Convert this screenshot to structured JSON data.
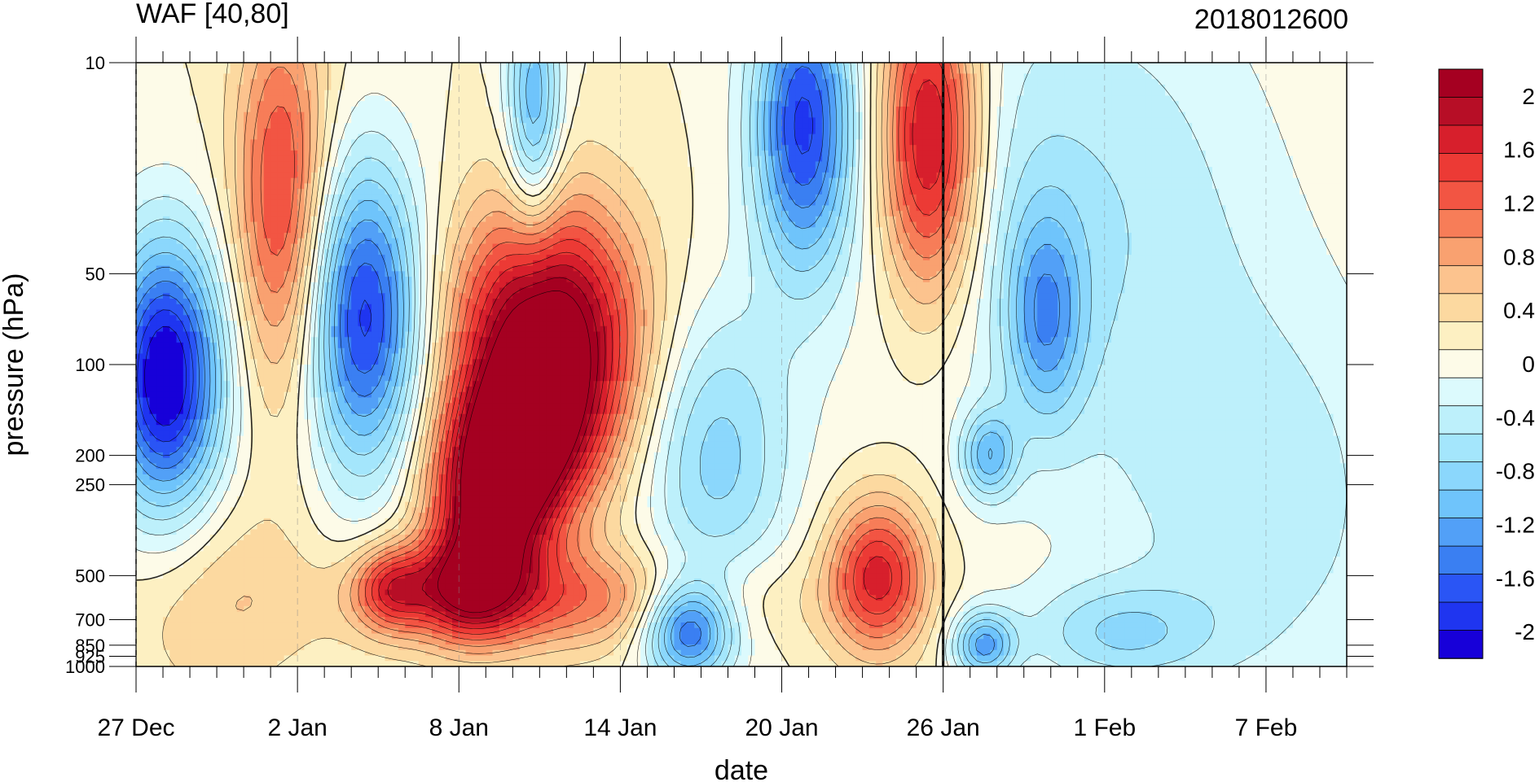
{
  "chart_data": {
    "type": "heatmap",
    "title": "WAF [40,80]",
    "date_label": "2018012600",
    "xlabel": "date",
    "ylabel": "pressure (hPa)",
    "x_ticks": [
      "27 Dec",
      "2 Jan",
      "8 Jan",
      "14 Jan",
      "20 Jan",
      "26 Jan",
      "1 Feb",
      "7 Feb"
    ],
    "x_range_days": [
      0,
      45
    ],
    "y_ticks": [
      10,
      50,
      100,
      200,
      250,
      500,
      700,
      850,
      925,
      1000
    ],
    "ylim": [
      1000,
      10
    ],
    "y_scale": "log",
    "marker_line": "26 Jan",
    "colorbar": {
      "levels": [
        -2.2,
        -2.0,
        -1.8,
        -1.6,
        -1.4,
        -1.2,
        -1.0,
        -0.8,
        -0.6,
        -0.4,
        -0.2,
        0,
        0.2,
        0.4,
        0.6,
        0.8,
        1.0,
        1.2,
        1.4,
        1.6,
        1.8,
        2.0,
        2.2
      ],
      "labels": [
        "-2",
        "-1.6",
        "-1.2",
        "-0.8",
        "-0.4",
        "0",
        "0.4",
        "0.8",
        "1.2",
        "1.6",
        "2"
      ],
      "colors": [
        "#1700d9",
        "#1f35f0",
        "#2a55f5",
        "#3a7ff2",
        "#52a0f7",
        "#6fc4fb",
        "#8bd7fc",
        "#a4e6fc",
        "#bdf0fb",
        "#dcfafd",
        "#fdfbe8",
        "#fdf0c2",
        "#fcd9a0",
        "#fcc38e",
        "#f9a170",
        "#f77d58",
        "#f25543",
        "#ec3a35",
        "#d71f2c",
        "#b70e26",
        "#a50021"
      ],
      "range": [
        -2.2,
        2.2
      ]
    },
    "blobs": [
      {
        "x": 1.1,
        "p": 110,
        "amp": -2.3,
        "w": 1.5,
        "h": 0.32
      },
      {
        "x": 8.5,
        "p": 70,
        "amp": -1.9,
        "w": 1.5,
        "h": 0.36
      },
      {
        "x": 15.3,
        "p": 85,
        "amp": 2.4,
        "w": 2.4,
        "h": 0.32
      },
      {
        "x": 13.2,
        "p": 300,
        "amp": 2.0,
        "w": 1.6,
        "h": 0.22
      },
      {
        "x": 14.5,
        "p": 170,
        "amp": 1.1,
        "w": 1.6,
        "h": 0.18
      },
      {
        "x": 5.4,
        "p": 28,
        "amp": 1.3,
        "w": 1.2,
        "h": 0.45
      },
      {
        "x": 29.5,
        "p": 18,
        "amp": 1.9,
        "w": 1.3,
        "h": 0.38
      },
      {
        "x": 27.6,
        "p": 500,
        "amp": 1.5,
        "w": 1.3,
        "h": 0.18
      },
      {
        "x": 24.8,
        "p": 16,
        "amp": -1.8,
        "w": 1.3,
        "h": 0.35
      },
      {
        "x": 21.5,
        "p": 200,
        "amp": -0.9,
        "w": 2.0,
        "h": 0.35
      },
      {
        "x": 20.5,
        "p": 750,
        "amp": -1.7,
        "w": 1.2,
        "h": 0.12
      },
      {
        "x": 33.8,
        "p": 70,
        "amp": -1.0,
        "w": 1.0,
        "h": 0.25
      },
      {
        "x": 35.0,
        "p": 30,
        "amp": -0.6,
        "w": 5.0,
        "h": 0.6
      },
      {
        "x": 16.0,
        "p": 600,
        "amp": 0.9,
        "w": 5.0,
        "h": 0.12
      },
      {
        "x": 12.2,
        "p": 550,
        "amp": 1.0,
        "w": 1.2,
        "h": 0.12
      },
      {
        "x": 9.5,
        "p": 550,
        "amp": 1.2,
        "w": 1.0,
        "h": 0.1
      },
      {
        "x": 31.7,
        "p": 200,
        "amp": -1.0,
        "w": 0.7,
        "h": 0.1
      },
      {
        "x": 31.5,
        "p": 850,
        "amp": -1.2,
        "w": 0.8,
        "h": 0.08
      },
      {
        "x": 36.5,
        "p": 780,
        "amp": -0.7,
        "w": 2.5,
        "h": 0.12
      },
      {
        "x": 14.8,
        "p": 14,
        "amp": -1.2,
        "w": 0.7,
        "h": 0.3
      },
      {
        "x": 3.0,
        "p": 600,
        "amp": 0.4,
        "w": 2.5,
        "h": 0.25
      },
      {
        "x": 42.0,
        "p": 300,
        "amp": -0.5,
        "w": 4.0,
        "h": 0.5
      }
    ]
  }
}
